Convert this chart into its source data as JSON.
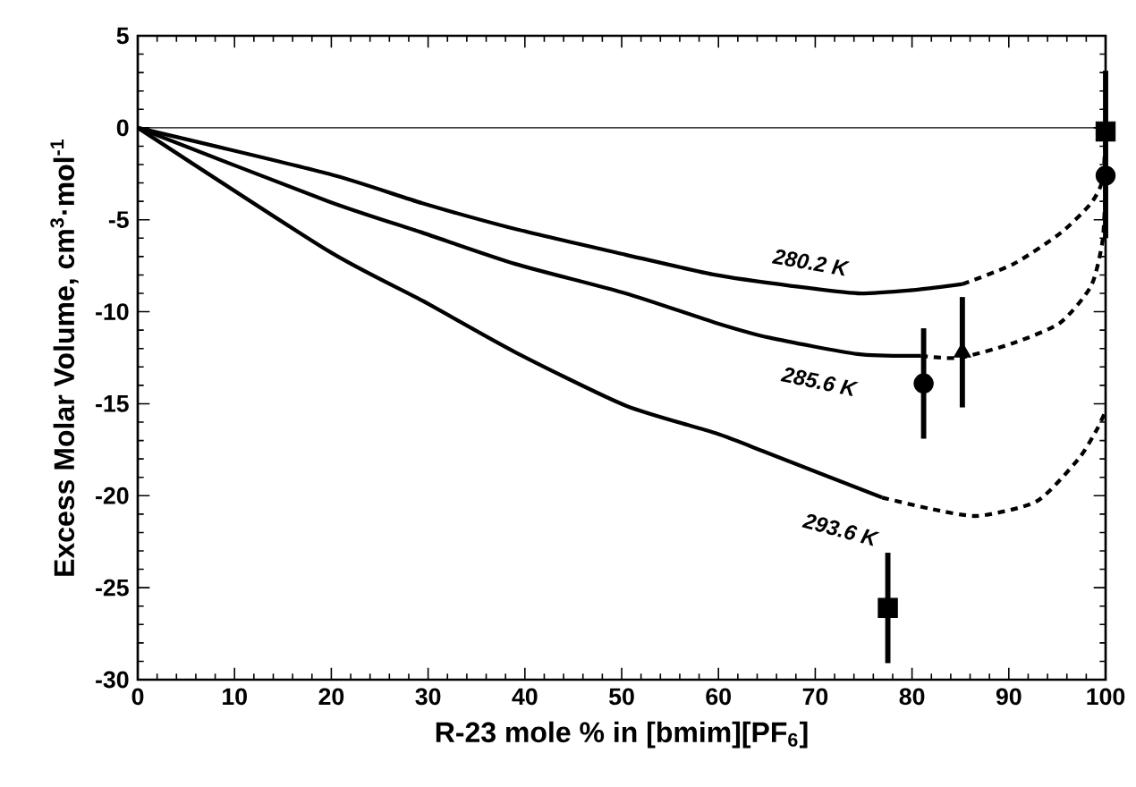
{
  "chart_data": {
    "type": "line",
    "xlabel": "R-23 mole % in [bmim][PF$_{6}$]",
    "ylabel": "Excess Molar Volume, cm$^{3}$·mol$^{-1}$",
    "xlim": [
      0,
      100
    ],
    "ylim": [
      -30,
      5
    ],
    "xticks": [
      0,
      10,
      20,
      30,
      40,
      50,
      60,
      70,
      80,
      90,
      100
    ],
    "yticks": [
      -30,
      -25,
      -20,
      -15,
      -10,
      -5,
      0,
      5
    ],
    "grid": false,
    "ref_lines": [
      {
        "axis": "y",
        "value": 0,
        "color": "#000000",
        "line_style": "solid"
      }
    ],
    "annotations": [
      "280.2 K",
      "285.6 K",
      "293.6 K"
    ],
    "series": [
      {
        "color": "#000000",
        "line_style": "solid",
        "marker": "none",
        "x": [
          0,
          19.7,
          29.4,
          39,
          50.4,
          59.7,
          67.6,
          74.4,
          80.6,
          85.2
        ],
        "values": [
          0,
          -2.5,
          -4.1,
          -5.5,
          -6.9,
          -8.0,
          -8.6,
          -9.0,
          -8.8,
          -8.5
        ]
      },
      {
        "color": "#000000",
        "line_style": "dashed",
        "marker": "none",
        "x": [
          85.2,
          90.5,
          95.4,
          98.5,
          99.7,
          100
        ],
        "values": [
          -8.5,
          -7.4,
          -5.7,
          -4.1,
          -2.8,
          -0.3
        ]
      },
      {
        "color": "#000000",
        "line_style": "solid",
        "marker": "none",
        "x": [
          0,
          19.7,
          29.4,
          39,
          50.4,
          59.7,
          65.2,
          74.4,
          80.9
        ],
        "values": [
          0,
          -4.0,
          -5.7,
          -7.4,
          -9.0,
          -10.6,
          -11.4,
          -12.3,
          -12.4
        ]
      },
      {
        "color": "#000000",
        "line_style": "dashed",
        "marker": "none",
        "x": [
          80.9,
          84.9,
          90.5,
          95.3,
          98.5,
          99.7,
          100
        ],
        "values": [
          -12.4,
          -12.5,
          -11.7,
          -10.6,
          -8.6,
          -6.1,
          -3.0
        ]
      },
      {
        "color": "#000000",
        "line_style": "solid",
        "marker": "none",
        "x": [
          0,
          19.7,
          29.4,
          39,
          50.4,
          59.7,
          65.2,
          76.9
        ],
        "values": [
          0,
          -6.7,
          -9.4,
          -12.2,
          -15.1,
          -16.6,
          -17.7,
          -20.1
        ]
      },
      {
        "color": "#000000",
        "line_style": "dashed",
        "marker": "none",
        "x": [
          76.9,
          81.8,
          86.8,
          92.9,
          97.2,
          99.1,
          100
        ],
        "values": [
          -20.1,
          -20.7,
          -21.1,
          -20.3,
          -18.0,
          -16.4,
          -15.4
        ]
      },
      {
        "type": "scatter",
        "color": "#000000",
        "marker": "square",
        "x": [
          77.5,
          100
        ],
        "values": [
          -26.1,
          -0.2
        ],
        "errors": [
          3,
          [
            -6.0,
            3.1
          ]
        ]
      },
      {
        "type": "scatter",
        "color": "#000000",
        "marker": "circle",
        "x": [
          81.2,
          100
        ],
        "values": [
          -13.9,
          -2.6
        ],
        "errors": [
          3,
          null
        ]
      },
      {
        "type": "scatter",
        "color": "#000000",
        "marker": "triangle",
        "x": [
          85.2
        ],
        "values": [
          -12.2
        ],
        "errors": [
          3
        ]
      }
    ]
  }
}
